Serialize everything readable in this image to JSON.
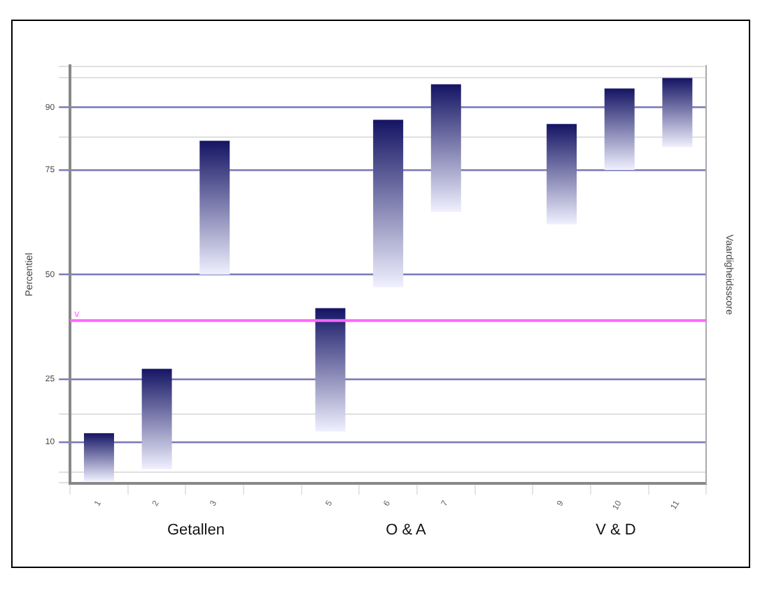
{
  "chart_data": {
    "type": "bar",
    "ylabel": "Percentiel",
    "y2label": "Vaardigheidsscore",
    "categories": [
      "1",
      "2",
      "3",
      null,
      "5",
      "6",
      "7",
      null,
      "9",
      "10",
      "11"
    ],
    "base": [
      0.6,
      3.5,
      50,
      null,
      12.5,
      47,
      65,
      null,
      62,
      75,
      80.5
    ],
    "values": [
      11.5,
      24,
      32,
      null,
      29.5,
      40,
      30.5,
      null,
      24,
      19.5,
      16.5
    ],
    "color": "#141464",
    "ylim": [
      0.06,
      99.93
    ],
    "yticks": [
      {
        "value": 0.2,
        "label": null
      },
      {
        "value": 2.7,
        "label": null
      },
      10,
      {
        "value": 16.6,
        "label": null
      },
      25,
      50,
      75,
      {
        "value": 82.8,
        "label": null
      },
      90,
      {
        "value": 97.1,
        "label": null
      },
      {
        "value": 99.8,
        "label": null
      }
    ],
    "grid": true,
    "ref_lines": [
      {
        "axis": "y",
        "value": 39,
        "label": "v",
        "color": "#ff66ff"
      }
    ],
    "annotations": [
      "Getallen",
      "O & A",
      "V & D"
    ]
  }
}
